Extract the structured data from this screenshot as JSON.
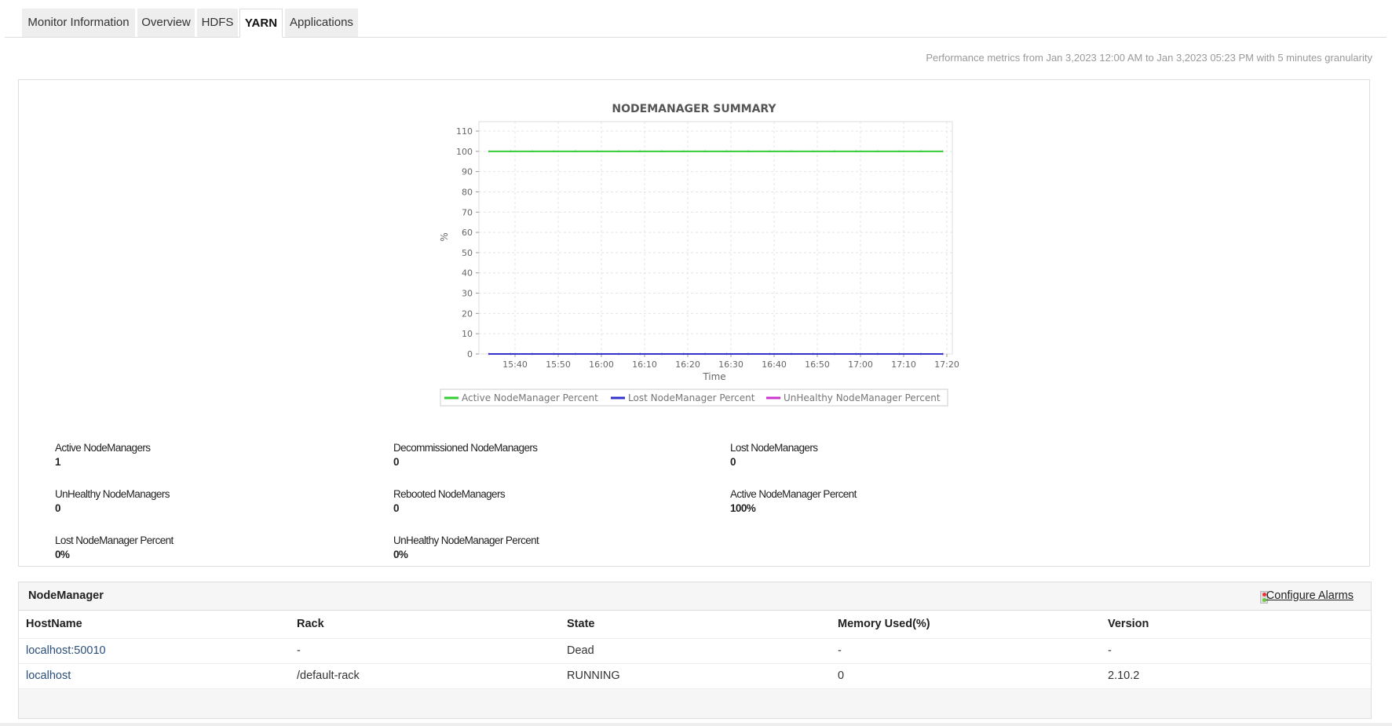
{
  "tabs": [
    {
      "label": "Monitor Information"
    },
    {
      "label": "Overview"
    },
    {
      "label": "HDFS"
    },
    {
      "label": "YARN",
      "active": true
    },
    {
      "label": "Applications"
    }
  ],
  "performance_text": "Performance metrics from Jan 3,2023 12:00 AM to Jan 3,2023 05:23 PM with 5 minutes granularity",
  "chart_data": {
    "type": "line",
    "title": "NODEMANAGER SUMMARY",
    "xlabel": "Time",
    "ylabel": "%",
    "ylim": [
      0,
      110
    ],
    "yticks": [
      "0",
      "10",
      "20",
      "30",
      "40",
      "50",
      "60",
      "70",
      "80",
      "90",
      "100",
      "110"
    ],
    "xticks": [
      "15:40",
      "15:50",
      "16:00",
      "16:10",
      "16:20",
      "16:30",
      "16:40",
      "16:50",
      "17:00",
      "17:10",
      "17:20"
    ],
    "x": [
      "15:34",
      "15:39",
      "15:44",
      "15:49",
      "15:54",
      "15:59",
      "16:04",
      "16:09",
      "16:14",
      "16:19",
      "16:24",
      "16:29",
      "16:34",
      "16:39",
      "16:44",
      "16:49",
      "16:54",
      "16:59",
      "17:04",
      "17:09",
      "17:14",
      "17:19"
    ],
    "grid": true,
    "legend_position": "bottom",
    "series": [
      {
        "name": "Active NodeManager Percent",
        "color": "#33cc33",
        "values": [
          100,
          100,
          100,
          100,
          100,
          100,
          100,
          100,
          100,
          100,
          100,
          100,
          100,
          100,
          100,
          100,
          100,
          100,
          100,
          100,
          100,
          100
        ]
      },
      {
        "name": "Lost NodeManager Percent",
        "color": "#3333cc",
        "values": [
          0,
          0,
          0,
          0,
          0,
          0,
          0,
          0,
          0,
          0,
          0,
          0,
          0,
          0,
          0,
          0,
          0,
          0,
          0,
          0,
          0,
          0
        ]
      },
      {
        "name": "UnHealthy NodeManager Percent",
        "color": "#cc33cc",
        "values": [
          0,
          0,
          0,
          0,
          0,
          0,
          0,
          0,
          0,
          0,
          0,
          0,
          0,
          0,
          0,
          0,
          0,
          0,
          0,
          0,
          0,
          0
        ]
      }
    ]
  },
  "stats": [
    {
      "label": "Active NodeManagers",
      "value": "1"
    },
    {
      "label": "Decommissioned NodeManagers",
      "value": "0"
    },
    {
      "label": "Lost NodeManagers",
      "value": "0"
    },
    {
      "label": "UnHealthy NodeManagers",
      "value": "0"
    },
    {
      "label": "Rebooted NodeManagers",
      "value": "0"
    },
    {
      "label": "Active NodeManager Percent",
      "value": "100%"
    },
    {
      "label": "Lost NodeManager Percent",
      "value": "0%"
    },
    {
      "label": "UnHealthy NodeManager Percent",
      "value": "0%"
    }
  ],
  "nodemanager": {
    "title": "NodeManager",
    "configure_alarms": "Configure Alarms",
    "columns": [
      "HostName",
      "Rack",
      "State",
      "Memory Used(%)",
      "Version"
    ],
    "rows": [
      [
        "localhost:50010",
        "-",
        "Dead",
        "-",
        "-"
      ],
      [
        "localhost",
        "/default-rack",
        "RUNNING",
        "0",
        "2.10.2"
      ]
    ]
  }
}
